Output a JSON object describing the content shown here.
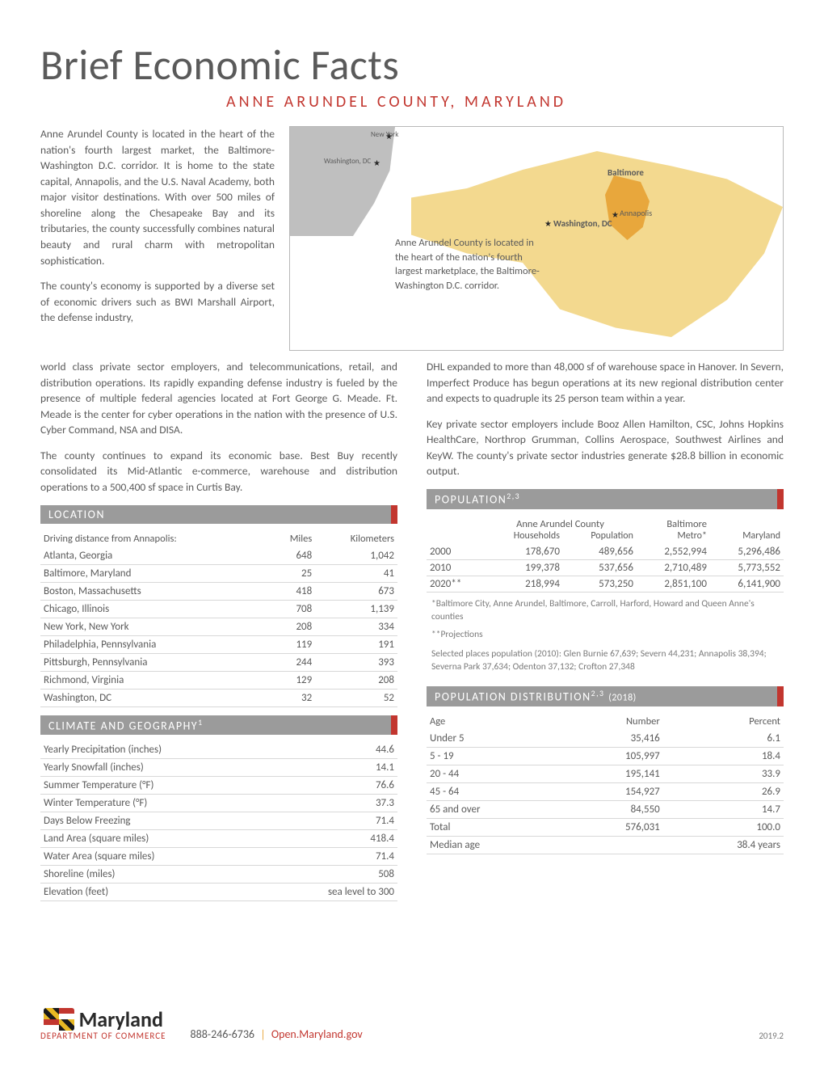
{
  "title": "Brief Economic Facts",
  "subtitle": "ANNE ARUNDEL COUNTY, MARYLAND",
  "intro": {
    "p1": "Anne Arundel County is located in the heart of the nation's fourth largest market, the Baltimore-Washington D.C. corridor. It is home to the state capital, Annapolis, and the U.S. Naval Academy, both major visitor destinations. With over 500 miles of shoreline along the Chesapeake Bay and its tributaries, the county successfully combines natural beauty and rural charm with metropolitan sophistication.",
    "p2": "The county's economy is supported by a diverse set of economic drivers such as BWI Marshall Airport, the defense industry,"
  },
  "map": {
    "caption": "Anne Arundel County is located in the heart of the nation's fourth largest marketplace, the Baltimore-Washington D.C. corridor.",
    "labels": {
      "nyc": "New York",
      "dc_small": "Washington, DC",
      "baltimore": "Baltimore",
      "annapolis": "Annapolis",
      "dc_big": "Washington, DC"
    }
  },
  "body_left": {
    "p1": "world class private sector employers, and telecommunications, retail, and distribution operations. Its rapidly expanding defense industry is fueled by the presence of multiple federal agencies located at Fort George G. Meade. Ft. Meade is the center for cyber operations in the nation with the presence of U.S. Cyber Command, NSA and DISA.",
    "p2": "The county continues to expand its economic base. Best Buy recently consolidated its Mid-Atlantic e-commerce, warehouse and distribution operations to a 500,400 sf space in Curtis Bay."
  },
  "body_right": {
    "p1": "DHL expanded to more than 48,000 sf of warehouse space in Hanover.  In Severn, Imperfect Produce has begun operations at its new regional distribution center and expects to quadruple its 25 person team within a year.",
    "p2": "Key private sector employers include Booz Allen Hamilton, CSC, Johns Hopkins HealthCare, Northrop Grumman, Collins Aerospace, Southwest Airlines and KeyW. The county's private sector industries generate $28.8 billion in economic output."
  },
  "location": {
    "header": "LOCATION",
    "subhead": "Driving distance from Annapolis:",
    "col_miles": "Miles",
    "col_km": "Kilometers",
    "rows": [
      {
        "city": "Atlanta, Georgia",
        "mi": "648",
        "km": "1,042"
      },
      {
        "city": "Baltimore, Maryland",
        "mi": "25",
        "km": "41"
      },
      {
        "city": "Boston, Massachusetts",
        "mi": "418",
        "km": "673"
      },
      {
        "city": "Chicago, Illinois",
        "mi": "708",
        "km": "1,139"
      },
      {
        "city": "New York, New York",
        "mi": "208",
        "km": "334"
      },
      {
        "city": "Philadelphia, Pennsylvania",
        "mi": "119",
        "km": "191"
      },
      {
        "city": "Pittsburgh, Pennsylvania",
        "mi": "244",
        "km": "393"
      },
      {
        "city": "Richmond, Virginia",
        "mi": "129",
        "km": "208"
      },
      {
        "city": "Washington, DC",
        "mi": "32",
        "km": "52"
      }
    ]
  },
  "climate": {
    "header": "CLIMATE  AND GEOGRAPHY",
    "sup": "1",
    "rows": [
      {
        "label": "Yearly Precipitation (inches)",
        "val": "44.6"
      },
      {
        "label": "Yearly Snowfall (inches)",
        "val": "14.1"
      },
      {
        "label": "Summer Temperature (°F)",
        "val": "76.6"
      },
      {
        "label": "Winter Temperature (°F)",
        "val": "37.3"
      },
      {
        "label": "Days Below Freezing",
        "val": "71.4"
      },
      {
        "label": "Land Area (square miles)",
        "val": "418.4"
      },
      {
        "label": "Water Area (square miles)",
        "val": "71.4"
      },
      {
        "label": "Shoreline (miles)",
        "val": "508"
      },
      {
        "label": "Elevation (feet)",
        "val": "sea level to 300"
      }
    ]
  },
  "population": {
    "header": "POPULATION",
    "sup": "2,3",
    "county_label": "Anne Arundel County",
    "col_hh": "Households",
    "col_pop": "Population",
    "col_metro": "Baltimore Metro*",
    "col_md": "Maryland",
    "rows": [
      {
        "year": "2000",
        "hh": "178,670",
        "pop": "489,656",
        "metro": "2,552,994",
        "md": "5,296,486"
      },
      {
        "year": "2010",
        "hh": "199,378",
        "pop": "537,656",
        "metro": "2,710,489",
        "md": "5,773,552"
      },
      {
        "year": "2020**",
        "hh": "218,994",
        "pop": "573,250",
        "metro": "2,851,100",
        "md": "6,141,900"
      }
    ],
    "note1": "*Baltimore City,  Anne Arundel, Baltimore, Carroll, Harford, Howard and Queen Anne's counties",
    "note2": "**Projections",
    "note3": "Selected places population (2010): Glen Burnie 67,639; Severn 44,231;  Annapolis 38,394; Severna Park 37,634; Odenton 37,132; Crofton 27,348"
  },
  "distribution": {
    "header": "POPULATION DISTRIBUTION",
    "sup": "2,3",
    "year": "(2018)",
    "col_age": "Age",
    "col_num": "Number",
    "col_pct": "Percent",
    "rows": [
      {
        "age": "Under 5",
        "num": "35,416",
        "pct": "6.1"
      },
      {
        "age": "5 - 19",
        "num": "105,997",
        "pct": "18.4"
      },
      {
        "age": "20 - 44",
        "num": "195,141",
        "pct": "33.9"
      },
      {
        "age": "45 - 64",
        "num": "154,927",
        "pct": "26.9"
      },
      {
        "age": "65 and over",
        "num": "84,550",
        "pct": "14.7"
      },
      {
        "age": "Total",
        "num": "576,031",
        "pct": "100.0"
      }
    ],
    "median_label": "Median age",
    "median_val": "38.4 years"
  },
  "footer": {
    "logo_text": "Maryland",
    "dept": "DEPARTMENT OF COMMERCE",
    "phone": "888-246-6736",
    "link": "Open.Maryland.gov",
    "version": "2019.2"
  }
}
